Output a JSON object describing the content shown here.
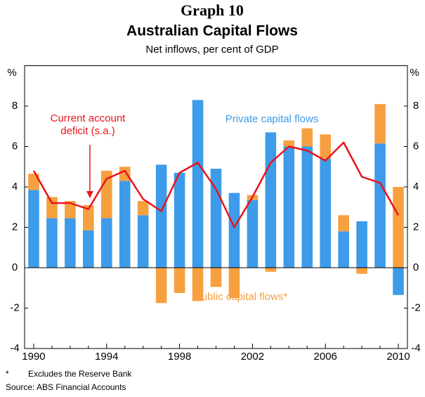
{
  "chart_data": {
    "type": "bar",
    "title": "Graph 10",
    "subtitle": "Australian Capital Flows",
    "description": "Net inflows, per cent of GDP",
    "y_unit": "%",
    "y2_unit": "%",
    "categories": [
      "1990",
      null,
      null,
      null,
      "1994",
      null,
      null,
      null,
      "1998",
      null,
      null,
      null,
      "2002",
      null,
      null,
      null,
      "2006",
      null,
      null,
      null,
      "2010"
    ],
    "series": [
      {
        "name": "Private capital flows",
        "color": "#3d9be9",
        "type": "bar",
        "values": [
          3.85,
          2.45,
          2.45,
          1.85,
          2.45,
          4.3,
          2.6,
          5.1,
          4.7,
          8.3,
          4.9,
          3.7,
          3.35,
          6.7,
          6.0,
          6.0,
          5.4,
          1.8,
          2.3,
          6.15,
          -1.35
        ]
      },
      {
        "name": "Public capital flows*",
        "color": "#f7a040",
        "type": "bar",
        "values": [
          0.8,
          1.05,
          0.85,
          1.25,
          2.35,
          0.7,
          0.7,
          -1.75,
          -1.25,
          -1.65,
          -0.95,
          -1.5,
          0.25,
          -0.2,
          0.3,
          0.9,
          1.2,
          0.8,
          -0.3,
          1.95,
          4.0
        ]
      },
      {
        "name": "Current account deficit (s.a.)",
        "color": "#e8141b",
        "type": "line",
        "values": [
          4.8,
          3.2,
          3.2,
          2.9,
          4.4,
          4.8,
          3.4,
          2.8,
          4.7,
          5.2,
          3.9,
          2.0,
          3.5,
          5.2,
          6.0,
          5.8,
          5.3,
          6.2,
          4.5,
          4.2,
          2.6
        ]
      }
    ],
    "stacked": true,
    "ylim": [
      -4,
      10
    ],
    "yticks": [
      -4,
      -2,
      0,
      2,
      4,
      6,
      8
    ],
    "y2lim": [
      -4,
      10
    ],
    "y2ticks": [
      -4,
      -2,
      0,
      2,
      4,
      6,
      8
    ],
    "grid": false,
    "footnote_mark": "*",
    "footnote": "Excludes the Reserve Bank",
    "source": "Source: ABS Financial Accounts"
  }
}
